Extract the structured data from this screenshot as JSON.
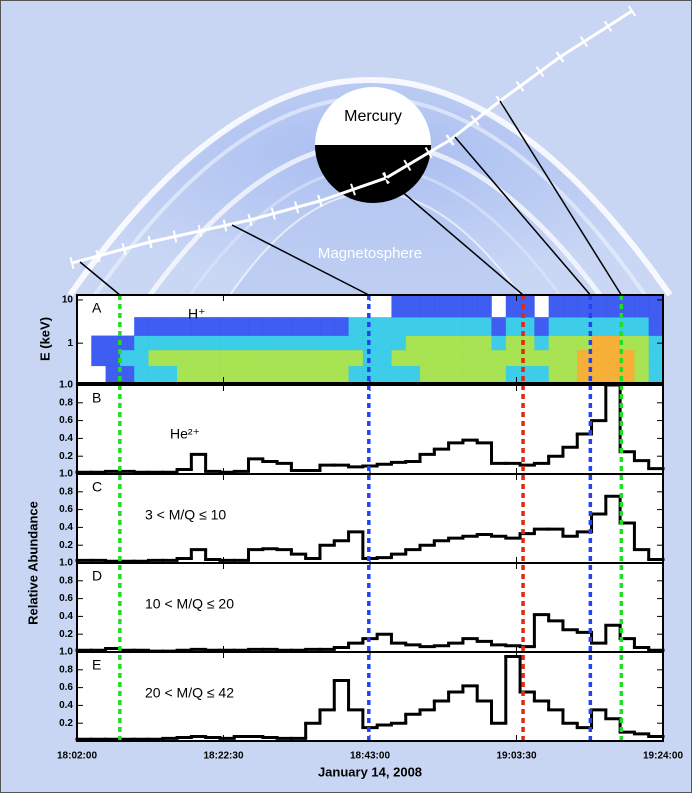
{
  "labels": {
    "mercury": "Mercury",
    "magnetosphere": "Magnetosphere"
  },
  "chart_data": {
    "type": "histogram",
    "xlabel": "January 14, 2008",
    "ylabel": "Relative Abundance",
    "xlim": [
      "18:02:00",
      "19:24:00"
    ],
    "xticks": [
      "18:02:00",
      "18:22:30",
      "18:43:00",
      "19:03:30",
      "19:24:00"
    ],
    "bins": [
      "18:02:00",
      "18:04:00",
      "18:06:00",
      "18:08:00",
      "18:10:00",
      "18:12:00",
      "18:14:00",
      "18:16:00",
      "18:18:00",
      "18:20:00",
      "18:22:00",
      "18:24:00",
      "18:26:00",
      "18:28:00",
      "18:30:00",
      "18:32:00",
      "18:34:00",
      "18:36:00",
      "18:38:00",
      "18:40:00",
      "18:42:00",
      "18:44:00",
      "18:46:00",
      "18:48:00",
      "18:50:00",
      "18:52:00",
      "18:54:00",
      "18:56:00",
      "18:58:00",
      "19:00:00",
      "19:02:00",
      "19:04:00",
      "19:06:00",
      "19:08:00",
      "19:10:00",
      "19:12:00",
      "19:14:00",
      "19:16:00",
      "19:18:00",
      "19:20:00",
      "19:22:00",
      "19:24:00"
    ],
    "ylim": [
      0,
      1
    ],
    "yticks": [
      0.2,
      0.4,
      0.6,
      0.8,
      {
        "value": 1,
        "label": "1.0"
      }
    ],
    "color": "#000000",
    "vlines": [
      {
        "x": "18:08:00",
        "color": "#22dd22"
      },
      {
        "x": "18:42:50",
        "color": "#2244ee"
      },
      {
        "x": "19:04:25",
        "color": "#e02a10"
      },
      {
        "x": "19:13:50",
        "color": "#2244ee"
      },
      {
        "x": "19:18:10",
        "color": "#22dd22"
      }
    ],
    "spectrogram": {
      "type": "heatmap",
      "panel": "A",
      "name": "H⁺",
      "ylabel": "E (keV)",
      "ylog": true,
      "ylim": [
        0.12,
        13
      ],
      "yticks": [
        1,
        10
      ],
      "ybins": [
        0.12,
        0.3,
        0.7,
        1.5,
        4,
        13
      ],
      "colorscale": [
        "#2a4cf0",
        "#28c8e6",
        "#9ee040",
        "#f5a623"
      ],
      "z": [
        [
          0,
          0,
          1,
          1,
          2,
          2,
          2,
          3,
          3,
          3,
          3,
          3,
          3,
          3,
          3,
          3,
          3,
          3,
          3,
          2,
          2,
          2,
          2,
          2,
          3,
          3,
          3,
          3,
          3,
          3,
          2,
          2,
          2,
          3,
          3,
          4,
          4,
          4,
          4,
          3,
          2
        ],
        [
          0,
          1,
          1,
          2,
          2,
          3,
          3,
          3,
          3,
          3,
          3,
          3,
          3,
          3,
          3,
          3,
          3,
          3,
          3,
          3,
          2,
          2,
          3,
          3,
          3,
          3,
          3,
          3,
          3,
          3,
          3,
          3,
          3,
          3,
          3,
          4,
          4,
          4,
          4,
          3,
          2
        ],
        [
          0,
          1,
          1,
          1,
          2,
          2,
          2,
          2,
          2,
          2,
          2,
          2,
          2,
          2,
          2,
          2,
          2,
          2,
          2,
          2,
          2,
          2,
          2,
          3,
          3,
          3,
          3,
          3,
          3,
          2,
          3,
          3,
          2,
          3,
          3,
          3,
          4,
          4,
          3,
          3,
          2
        ],
        [
          0,
          0,
          0,
          0,
          1,
          1,
          1,
          1,
          1,
          1,
          1,
          1,
          1,
          1,
          1,
          1,
          1,
          1,
          1,
          2,
          2,
          2,
          2,
          2,
          2,
          2,
          2,
          2,
          2,
          1,
          2,
          2,
          1,
          2,
          2,
          2,
          2,
          2,
          2,
          2,
          1
        ],
        [
          0,
          0,
          0,
          0,
          0,
          0,
          0,
          0,
          0,
          0,
          0,
          0,
          0,
          0,
          0,
          0,
          0,
          0,
          0,
          0,
          0,
          0,
          1,
          1,
          1,
          1,
          1,
          1,
          1,
          0,
          1,
          1,
          0,
          1,
          1,
          1,
          1,
          1,
          1,
          1,
          1
        ]
      ]
    },
    "series": [
      {
        "panel": "B",
        "name": "He²⁺",
        "values": [
          0.02,
          0.02,
          0.03,
          0.03,
          0.02,
          0.02,
          0.02,
          0.05,
          0.22,
          0.03,
          0.02,
          0.03,
          0.17,
          0.14,
          0.12,
          0.04,
          0.04,
          0.1,
          0.1,
          0.08,
          0.09,
          0.11,
          0.13,
          0.14,
          0.22,
          0.28,
          0.35,
          0.38,
          0.35,
          0.12,
          0.12,
          0.1,
          0.12,
          0.2,
          0.3,
          0.45,
          0.6,
          1.0,
          0.25,
          0.15,
          0.06
        ]
      },
      {
        "panel": "C",
        "name": "3 < M/Q ≤ 10",
        "values": [
          0.03,
          0.03,
          0.02,
          0.02,
          0.02,
          0.03,
          0.03,
          0.05,
          0.15,
          0.04,
          0.03,
          0.03,
          0.15,
          0.16,
          0.15,
          0.1,
          0.05,
          0.2,
          0.25,
          0.35,
          0.05,
          0.06,
          0.1,
          0.15,
          0.2,
          0.25,
          0.28,
          0.3,
          0.32,
          0.3,
          0.28,
          0.33,
          0.38,
          0.38,
          0.3,
          0.35,
          0.55,
          0.75,
          0.45,
          0.15,
          0.04
        ]
      },
      {
        "panel": "D",
        "name": "10 < M/Q ≤ 20",
        "values": [
          0.02,
          0.02,
          0.04,
          0.02,
          0.02,
          0.01,
          0.01,
          0.02,
          0.03,
          0.02,
          0.02,
          0.02,
          0.03,
          0.03,
          0.02,
          0.02,
          0.03,
          0.03,
          0.05,
          0.1,
          0.15,
          0.2,
          0.1,
          0.08,
          0.06,
          0.07,
          0.1,
          0.15,
          0.12,
          0.08,
          0.07,
          0.06,
          0.42,
          0.35,
          0.25,
          0.22,
          0.1,
          0.3,
          0.15,
          0.05,
          0.02
        ]
      },
      {
        "panel": "E",
        "name": "20 < M/Q ≤ 42",
        "values": [
          0.02,
          0.02,
          0.02,
          0.02,
          0.02,
          0.02,
          0.03,
          0.04,
          0.05,
          0.04,
          0.03,
          0.05,
          0.05,
          0.04,
          0.03,
          0.03,
          0.2,
          0.35,
          0.68,
          0.35,
          0.15,
          0.18,
          0.2,
          0.3,
          0.35,
          0.45,
          0.55,
          0.62,
          0.45,
          0.2,
          0.95,
          0.55,
          0.45,
          0.35,
          0.2,
          0.15,
          0.35,
          0.25,
          0.1,
          0.08,
          0.05
        ]
      }
    ]
  }
}
